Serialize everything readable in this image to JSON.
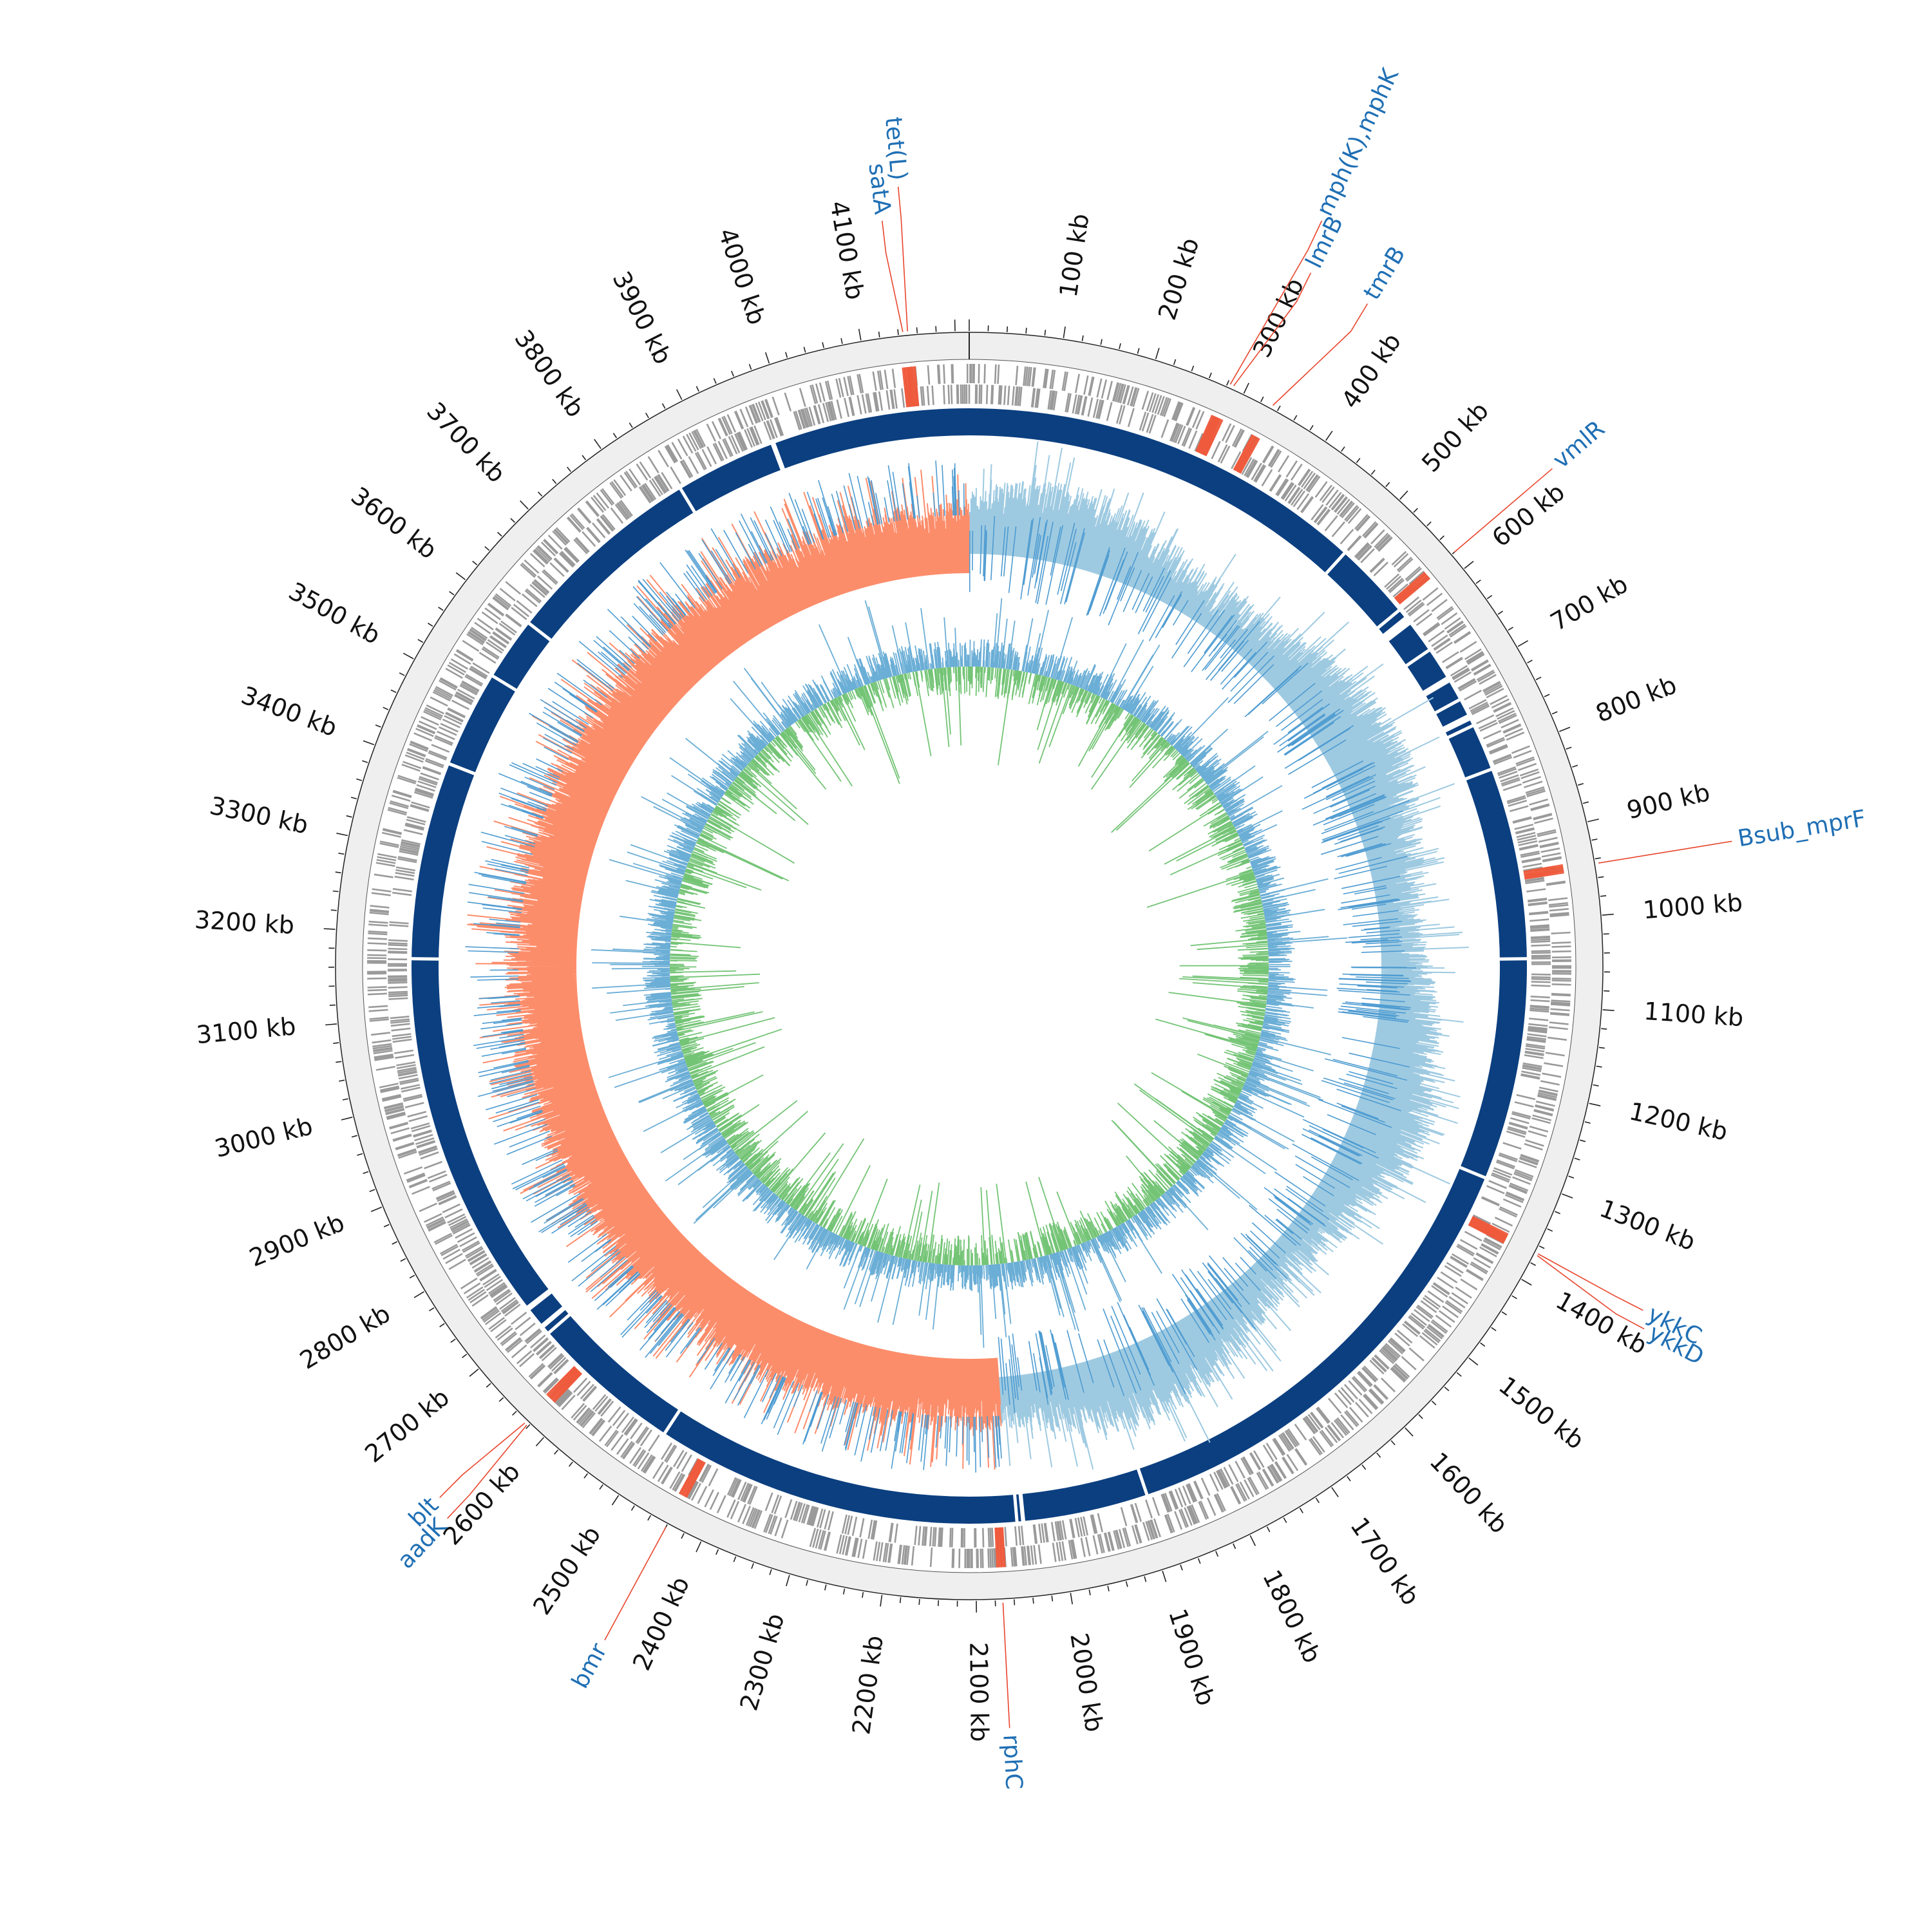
{
  "genome": {
    "length_kb": 4215,
    "tick_label_unit": "kb",
    "tick_labels_kb": [
      100,
      200,
      300,
      400,
      500,
      600,
      700,
      800,
      900,
      1000,
      1100,
      1200,
      1300,
      1400,
      1500,
      1600,
      1700,
      1800,
      1900,
      2000,
      2100,
      2200,
      2300,
      2400,
      2500,
      2600,
      2700,
      2800,
      2900,
      3000,
      3100,
      3200,
      3300,
      3400,
      3500,
      3600,
      3700,
      3800,
      3900,
      4000,
      4100
    ]
  },
  "genes": [
    {
      "name": "tet(L)",
      "position_kb": 4150
    },
    {
      "name": "satA",
      "position_kb": 4145
    },
    {
      "name": "mph(K),mphK",
      "position_kb": 283
    },
    {
      "name": "lmrB",
      "position_kb": 287
    },
    {
      "name": "tmrB",
      "position_kb": 333
    },
    {
      "name": "vmlR",
      "position_kb": 580
    },
    {
      "name": "Bsub_mprF",
      "position_kb": 945
    },
    {
      "name": "ykkC",
      "position_kb": 1368
    },
    {
      "name": "ykkD",
      "position_kb": 1370
    },
    {
      "name": "rphC",
      "position_kb": 2072
    },
    {
      "name": "bmr",
      "position_kb": 2440
    },
    {
      "name": "aadK",
      "position_kb": 2622
    },
    {
      "name": "blt",
      "position_kb": 2625
    }
  ],
  "tracks": {
    "contig_gaps_kb": [
      3975,
      3973,
      3850,
      3605,
      3528,
      3410,
      3170,
      2720,
      2680,
      2495,
      2050,
      2043,
      1890,
      1315,
      1045,
      590,
      650,
      720,
      755,
      812,
      495
    ],
    "gc_skew_split_kb": [
      0,
      2060
    ],
    "colors": {
      "outer_ring": "#efefef",
      "feature_gray": "#9a9a9a",
      "feature_red": "#ef5a3c",
      "contig_blue": "#0b3f80",
      "skew_positive": "#9ecae1",
      "skew_negative": "#fc8d6b",
      "gc_content_above": "#6baed6",
      "gc_content_below": "#74c476",
      "label_blue": "#1f6fb4",
      "leader_red": "#e8452c"
    }
  }
}
